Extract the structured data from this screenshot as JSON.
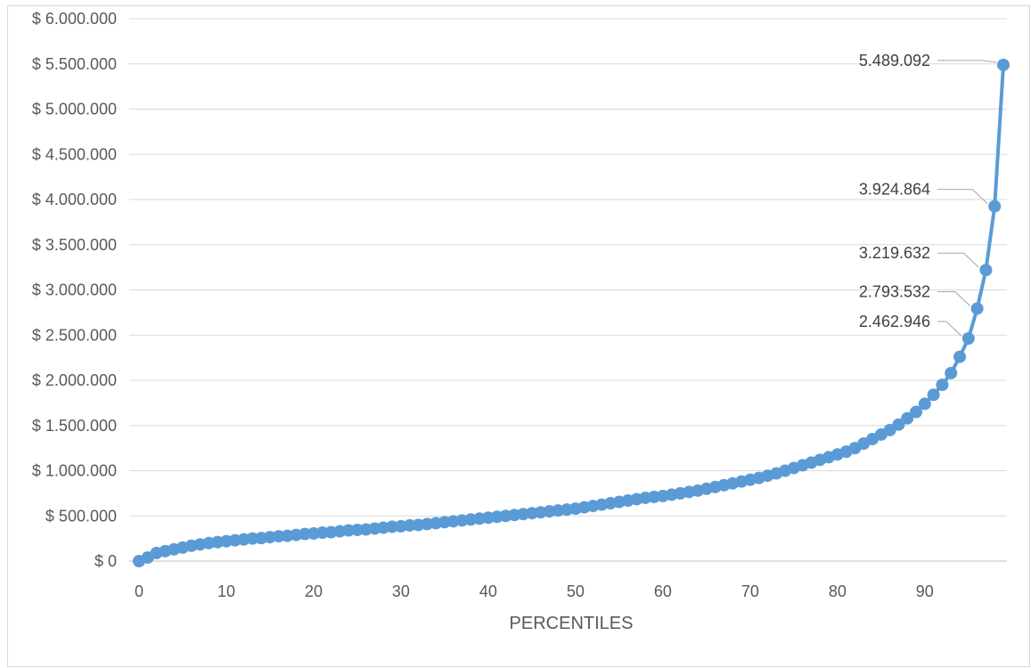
{
  "chart_data": {
    "type": "line",
    "title": "",
    "xlabel": "PERCENTILES",
    "ylabel": "",
    "xlim": [
      0,
      99
    ],
    "ylim": [
      0,
      6000000
    ],
    "x_ticks": [
      0,
      10,
      20,
      30,
      40,
      50,
      60,
      70,
      80,
      90
    ],
    "x_tick_labels": [
      "0",
      "10",
      "20",
      "30",
      "40",
      "50",
      "60",
      "70",
      "80",
      "90"
    ],
    "y_ticks": [
      0,
      500000,
      1000000,
      1500000,
      2000000,
      2500000,
      3000000,
      3500000,
      4000000,
      4500000,
      5000000,
      5500000,
      6000000
    ],
    "y_tick_labels": [
      "$ 0",
      "$ 500.000",
      "$ 1.000.000",
      "$ 1.500.000",
      "$ 2.000.000",
      "$ 2.500.000",
      "$ 3.000.000",
      "$ 3.500.000",
      "$ 4.000.000",
      "$ 4.500.000",
      "$ 5.000.000",
      "$ 5.500.000",
      "$ 6.000.000"
    ],
    "grid": "horizontal",
    "legend": "none",
    "series": [
      {
        "color": "#5b9bd5",
        "marker": "circle",
        "x": [
          0,
          1,
          2,
          3,
          4,
          5,
          6,
          7,
          8,
          9,
          10,
          11,
          12,
          13,
          14,
          15,
          16,
          17,
          18,
          19,
          20,
          21,
          22,
          23,
          24,
          25,
          26,
          27,
          28,
          29,
          30,
          31,
          32,
          33,
          34,
          35,
          36,
          37,
          38,
          39,
          40,
          41,
          42,
          43,
          44,
          45,
          46,
          47,
          48,
          49,
          50,
          51,
          52,
          53,
          54,
          55,
          56,
          57,
          58,
          59,
          60,
          61,
          62,
          63,
          64,
          65,
          66,
          67,
          68,
          69,
          70,
          71,
          72,
          73,
          74,
          75,
          76,
          77,
          78,
          79,
          80,
          81,
          82,
          83,
          84,
          85,
          86,
          87,
          88,
          89,
          90,
          91,
          92,
          93,
          94,
          95,
          96,
          97,
          98,
          99
        ],
        "values": [
          0,
          40000,
          90000,
          110000,
          130000,
          150000,
          170000,
          185000,
          200000,
          210000,
          220000,
          230000,
          240000,
          250000,
          255000,
          265000,
          275000,
          280000,
          290000,
          300000,
          305000,
          315000,
          320000,
          330000,
          340000,
          345000,
          350000,
          360000,
          370000,
          380000,
          385000,
          395000,
          400000,
          410000,
          420000,
          430000,
          440000,
          450000,
          460000,
          470000,
          480000,
          490000,
          500000,
          510000,
          520000,
          530000,
          540000,
          550000,
          560000,
          570000,
          580000,
          595000,
          610000,
          625000,
          640000,
          655000,
          670000,
          685000,
          700000,
          710000,
          720000,
          735000,
          750000,
          765000,
          780000,
          800000,
          820000,
          840000,
          860000,
          880000,
          900000,
          920000,
          945000,
          970000,
          1000000,
          1030000,
          1060000,
          1090000,
          1120000,
          1150000,
          1180000,
          1210000,
          1250000,
          1300000,
          1350000,
          1400000,
          1450000,
          1510000,
          1580000,
          1650000,
          1740000,
          1840000,
          1950000,
          2080000,
          2260000,
          2462946,
          2793532,
          3219632,
          3924864,
          5489092
        ]
      }
    ],
    "annotations": [
      {
        "x": 95,
        "value": 2462946,
        "text": "2.462.946"
      },
      {
        "x": 96,
        "value": 2793532,
        "text": "2.793.532"
      },
      {
        "x": 97,
        "value": 3219632,
        "text": "3.219.632"
      },
      {
        "x": 98,
        "value": 3924864,
        "text": "3.924.864"
      },
      {
        "x": 99,
        "value": 5489092,
        "text": "5.489.092"
      }
    ]
  }
}
